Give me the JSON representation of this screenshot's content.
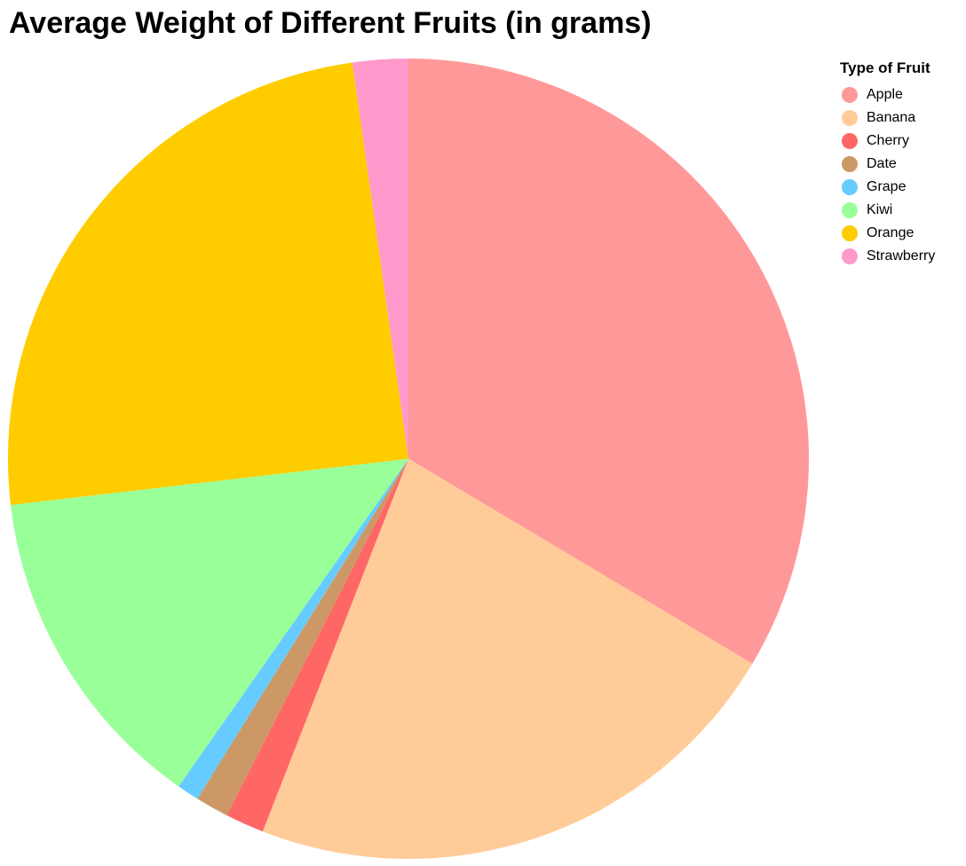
{
  "chart_data": {
    "type": "pie",
    "title": "Average Weight of Different Fruits (in grams)",
    "legend_title": "Type of Fruit",
    "legend_position": "right",
    "categories": [
      "Apple",
      "Banana",
      "Cherry",
      "Date",
      "Grape",
      "Kiwi",
      "Orange",
      "Strawberry"
    ],
    "values": [
      150,
      100,
      7,
      6,
      4,
      60,
      110,
      10
    ],
    "colors": [
      "#ff9999",
      "#ffcc99",
      "#ff6666",
      "#cc9966",
      "#66ccff",
      "#99ff99",
      "#ffcc00",
      "#ff99cc"
    ]
  }
}
